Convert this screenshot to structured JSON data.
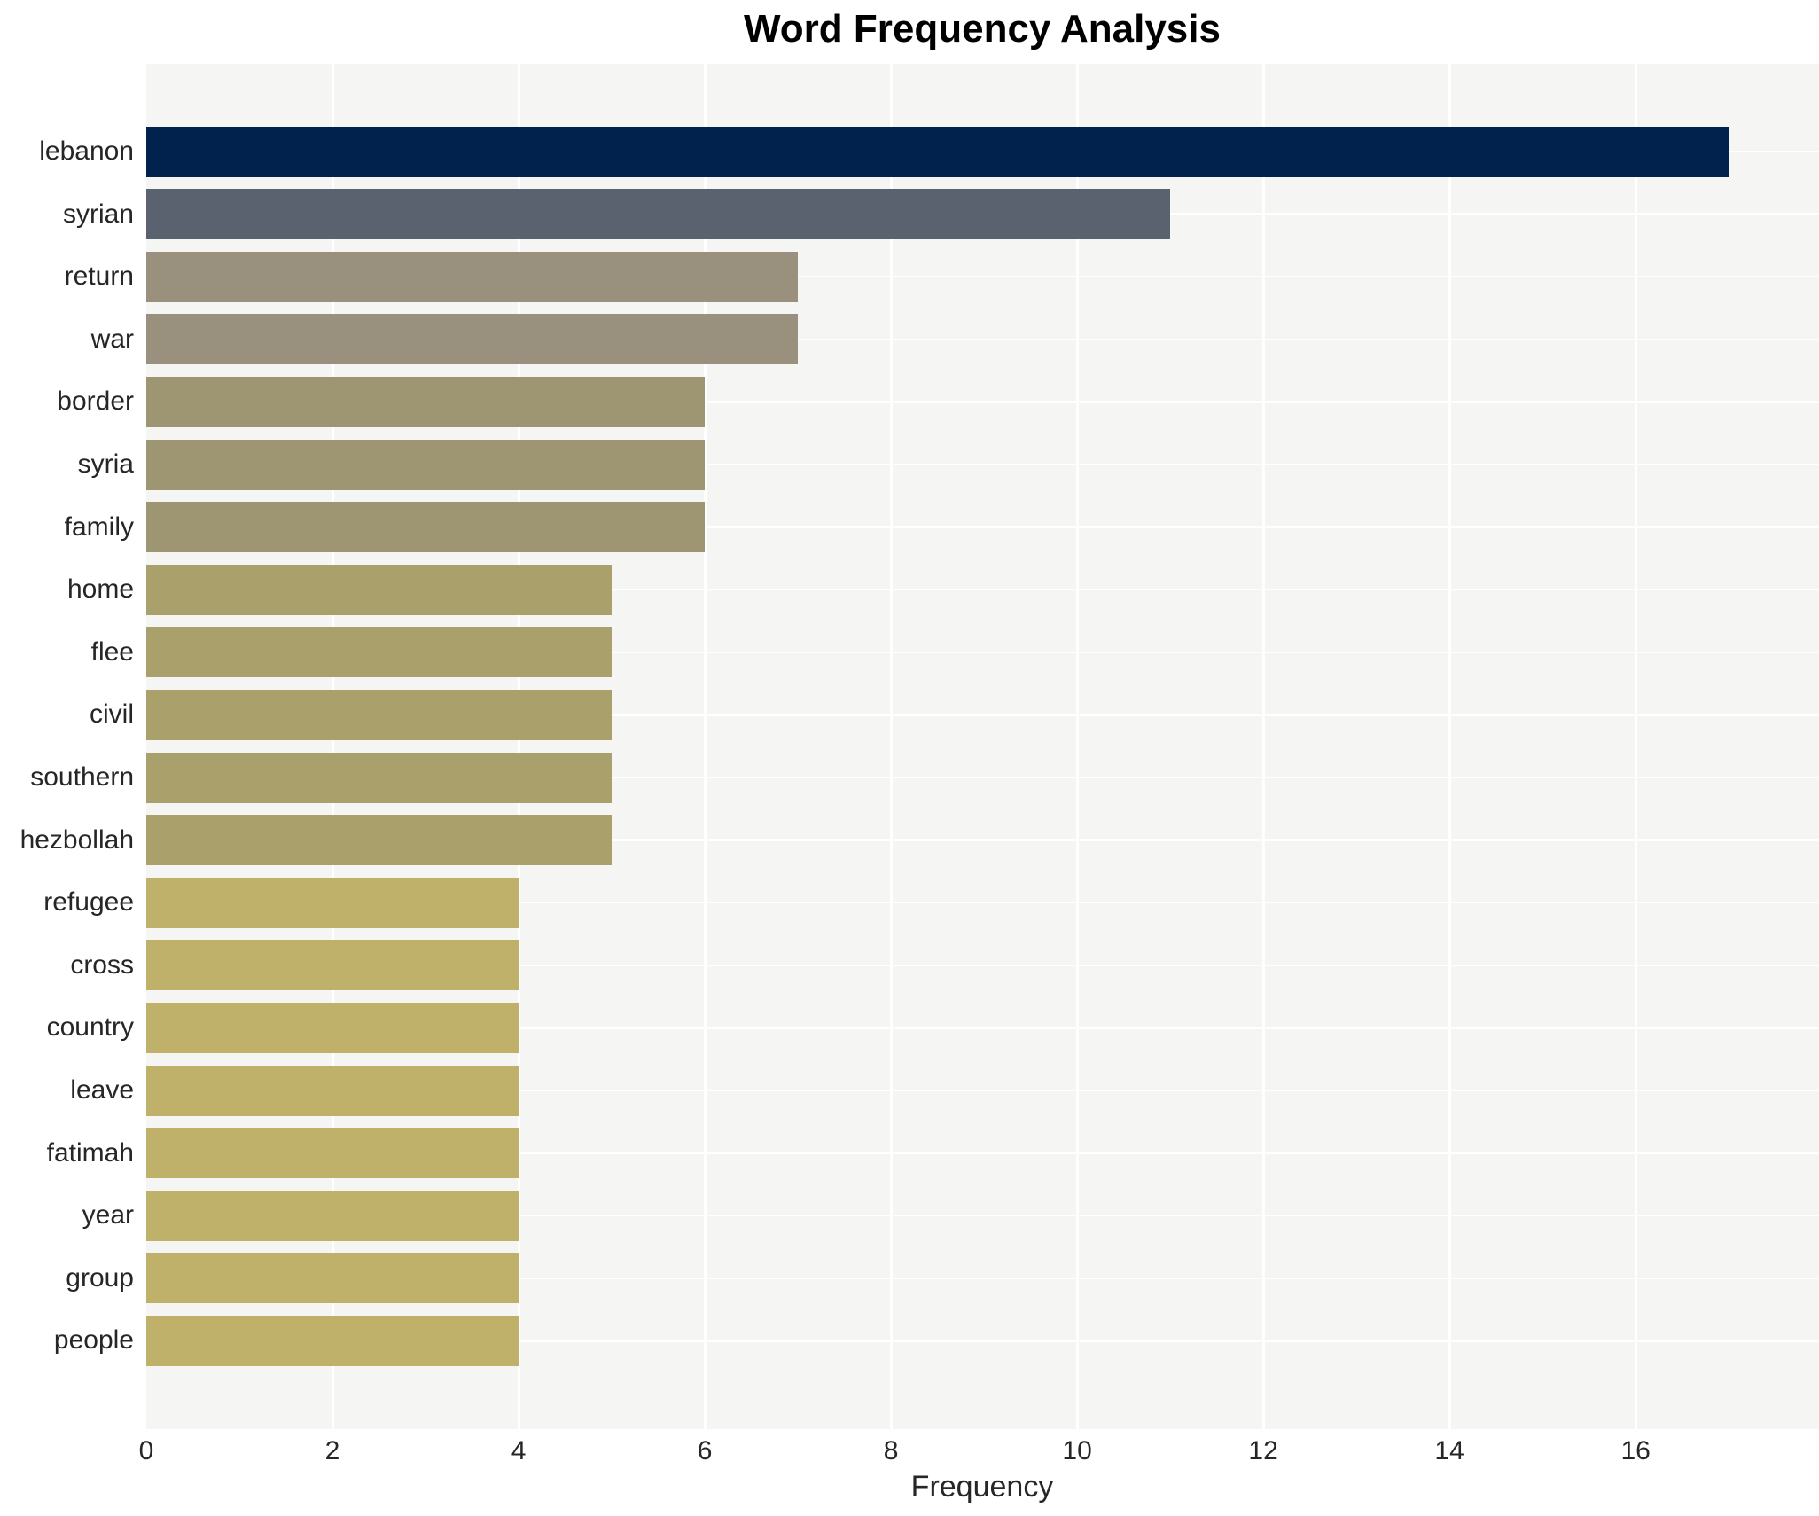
{
  "chart_data": {
    "type": "bar",
    "orientation": "horizontal",
    "title": "Word Frequency Analysis",
    "xlabel": "Frequency",
    "ylabel": "",
    "categories": [
      "lebanon",
      "syrian",
      "return",
      "war",
      "border",
      "syria",
      "family",
      "home",
      "flee",
      "civil",
      "southern",
      "hezbollah",
      "refugee",
      "cross",
      "country",
      "leave",
      "fatimah",
      "year",
      "group",
      "people"
    ],
    "values": [
      17,
      11,
      7,
      7,
      6,
      6,
      6,
      5,
      5,
      5,
      5,
      5,
      4,
      4,
      4,
      4,
      4,
      4,
      4,
      4
    ],
    "bar_colors": [
      "#02224e",
      "#5b626f",
      "#99907e",
      "#99907e",
      "#9e9672",
      "#9e9672",
      "#9e9672",
      "#a9a06c",
      "#a9a06c",
      "#a9a06c",
      "#a9a06c",
      "#a9a06c",
      "#bfb169",
      "#bfb169",
      "#bfb169",
      "#bfb169",
      "#bfb169",
      "#bfb169",
      "#bfb169",
      "#bfb169"
    ],
    "xticks": [
      0,
      2,
      4,
      6,
      8,
      10,
      12,
      14,
      16
    ],
    "xlim": [
      0,
      17.97
    ],
    "grid": "white vertical and horizontal gridlines on light gray plot background",
    "legend_position": "none",
    "plot_background_color": "#f5f5f3",
    "grid_color": "#ffffff",
    "text_color": "#262626",
    "title_color": "#000000"
  }
}
